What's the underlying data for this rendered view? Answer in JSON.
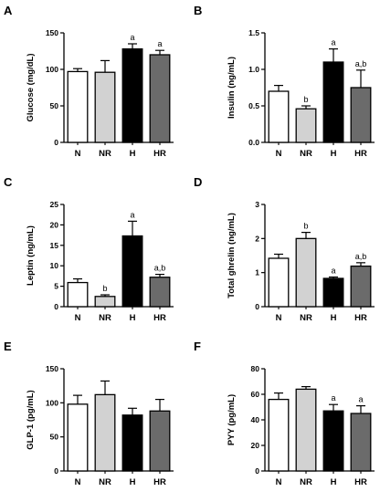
{
  "colors": {
    "N": "#ffffff",
    "NR": "#d2d2d2",
    "H": "#000000",
    "HR": "#6b6b6b",
    "stroke": "#000000"
  },
  "chart_data": [
    {
      "panel": "A",
      "type": "bar",
      "ylabel": "Glucose (mg/dL)",
      "categories": [
        "N",
        "NR",
        "H",
        "HR"
      ],
      "values": [
        97,
        96,
        128,
        120
      ],
      "errors": [
        4,
        16,
        7,
        6
      ],
      "annotations": [
        "",
        "",
        "a",
        "a"
      ],
      "ylim": [
        0,
        150
      ],
      "yticks": [
        "0",
        "50",
        "100",
        "150"
      ]
    },
    {
      "panel": "B",
      "type": "bar",
      "ylabel": "Insulin (ng/mL)",
      "categories": [
        "N",
        "NR",
        "H",
        "HR"
      ],
      "values": [
        0.7,
        0.46,
        1.1,
        0.75
      ],
      "errors": [
        0.08,
        0.04,
        0.18,
        0.24
      ],
      "annotations": [
        "",
        "b",
        "a",
        "a,b"
      ],
      "ylim": [
        0,
        1.5
      ],
      "yticks": [
        "0.0",
        "0.5",
        "1.0",
        "1.5"
      ]
    },
    {
      "panel": "C",
      "type": "bar",
      "ylabel": "Leptin (ng/mL)",
      "categories": [
        "N",
        "NR",
        "H",
        "HR"
      ],
      "values": [
        5.9,
        2.5,
        17.3,
        7.2
      ],
      "errors": [
        0.9,
        0.4,
        3.6,
        0.7
      ],
      "annotations": [
        "",
        "b",
        "a",
        "a,b"
      ],
      "ylim": [
        0,
        25
      ],
      "yticks": [
        "0",
        "5",
        "10",
        "15",
        "20",
        "25"
      ]
    },
    {
      "panel": "D",
      "type": "bar",
      "ylabel": "Total ghrelin (ng/mL)",
      "categories": [
        "N",
        "NR",
        "H",
        "HR"
      ],
      "values": [
        1.42,
        2.0,
        0.83,
        1.19
      ],
      "errors": [
        0.12,
        0.18,
        0.04,
        0.1
      ],
      "annotations": [
        "",
        "b",
        "a",
        "a,b"
      ],
      "ylim": [
        0,
        3
      ],
      "yticks": [
        "0",
        "1",
        "2",
        "3"
      ]
    },
    {
      "panel": "E",
      "type": "bar",
      "ylabel": "GLP-1 (pg/mL)",
      "categories": [
        "N",
        "NR",
        "H",
        "HR"
      ],
      "values": [
        98,
        112,
        82,
        88
      ],
      "errors": [
        13,
        20,
        10,
        17
      ],
      "annotations": [
        "",
        "",
        "",
        ""
      ],
      "ylim": [
        0,
        150
      ],
      "yticks": [
        "0",
        "50",
        "100",
        "150"
      ]
    },
    {
      "panel": "F",
      "type": "bar",
      "ylabel": "PYY (pg/mL)",
      "categories": [
        "N",
        "NR",
        "H",
        "HR"
      ],
      "values": [
        56,
        64,
        47,
        45
      ],
      "errors": [
        5,
        2,
        5,
        6
      ],
      "annotations": [
        "",
        "",
        "a",
        "a"
      ],
      "ylim": [
        0,
        80
      ],
      "yticks": [
        "0",
        "20",
        "40",
        "60",
        "80"
      ]
    }
  ]
}
